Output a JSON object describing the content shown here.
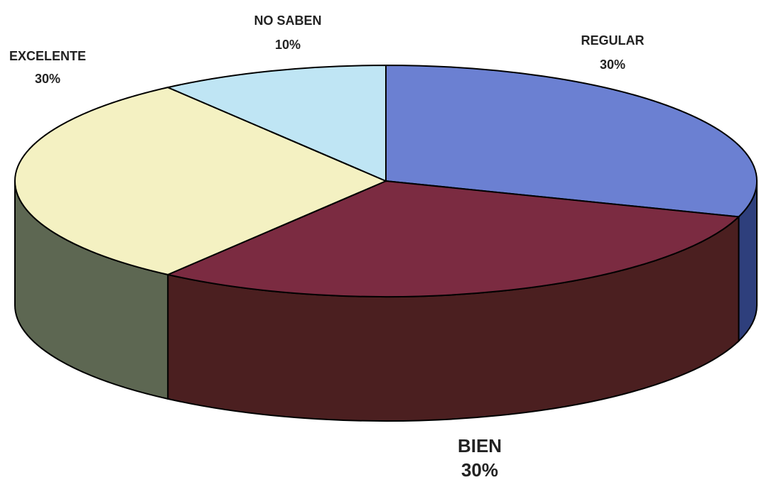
{
  "chart_data": {
    "type": "pie3d",
    "categories": [
      "REGULAR",
      "BIEN",
      "EXCELENTE",
      "NO SABEN"
    ],
    "values": [
      30,
      30,
      30,
      10
    ],
    "value_labels": [
      "30%",
      "30%",
      "30%",
      "10%"
    ],
    "colors": [
      "#6b80d2",
      "#7b2b41",
      "#f4f1c2",
      "#bfe5f4"
    ],
    "side_colors": [
      "#2e3f7c",
      "#4b1f20",
      "#5d6752",
      "#8fb3c2"
    ]
  }
}
